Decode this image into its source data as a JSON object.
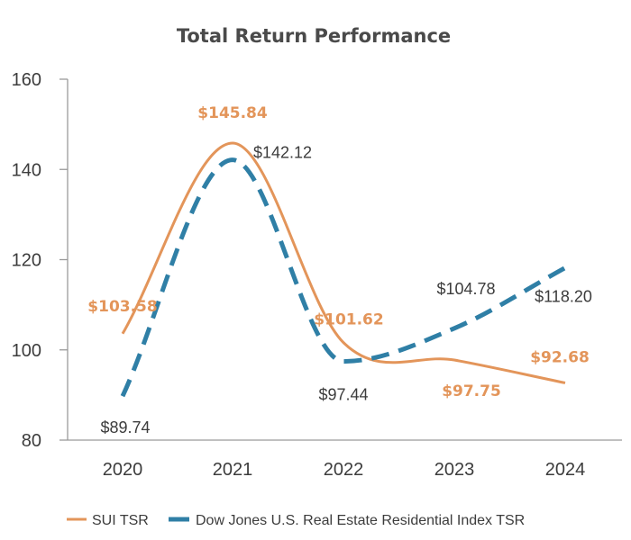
{
  "chart_data": {
    "type": "line",
    "title": "Total Return Performance",
    "categories": [
      "2020",
      "2021",
      "2022",
      "2023",
      "2024"
    ],
    "ylim": [
      80,
      160
    ],
    "yticks": [
      80,
      100,
      120,
      140,
      160
    ],
    "series": [
      {
        "name": "SUI TSR",
        "color": "#e3955a",
        "style": "solid",
        "values": [
          103.58,
          145.84,
          101.62,
          97.75,
          92.68
        ],
        "labels": [
          "$103.58",
          "$145.84",
          "$101.62",
          "$97.75",
          "$92.68"
        ]
      },
      {
        "name": "Dow Jones U.S. Real Estate Residential Index TSR",
        "color": "#2f7fa6",
        "style": "dashed",
        "values": [
          89.74,
          142.12,
          97.44,
          104.78,
          118.2
        ],
        "labels": [
          "$89.74",
          "$142.12",
          "$97.44",
          "$104.78",
          "$118.20"
        ]
      }
    ],
    "legend_position": "bottom"
  }
}
